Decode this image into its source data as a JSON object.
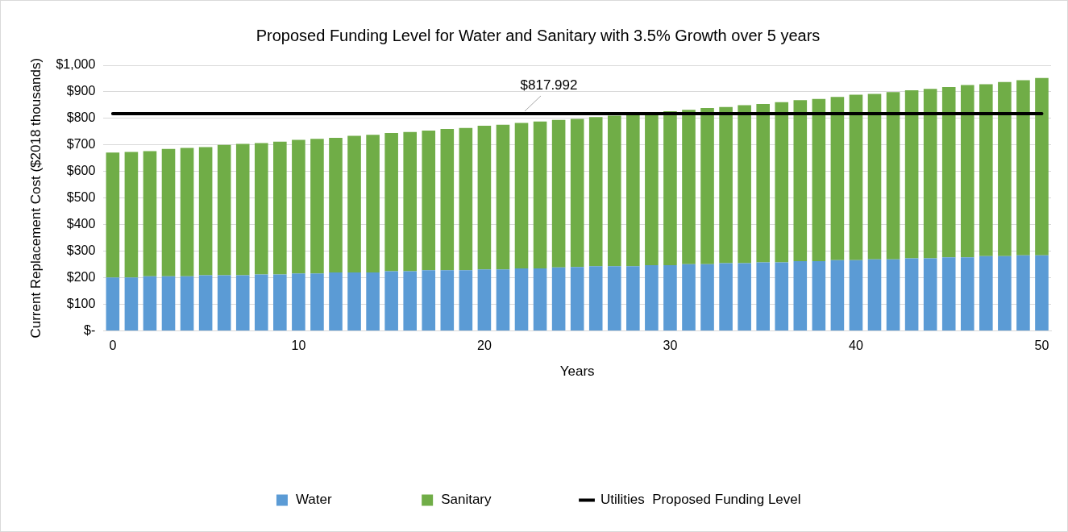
{
  "chart_data": {
    "type": "bar",
    "title": "Proposed Funding Level for Water and Sanitary with 3.5% Growth over 5 years",
    "xlabel": "Years",
    "ylabel": "Current Replacement Cost ($2018 thousands)",
    "categories": [
      "0",
      null,
      null,
      null,
      null,
      null,
      null,
      null,
      null,
      null,
      "10",
      null,
      null,
      null,
      null,
      null,
      null,
      null,
      null,
      null,
      "20",
      null,
      null,
      null,
      null,
      null,
      null,
      null,
      null,
      null,
      "30",
      null,
      null,
      null,
      null,
      null,
      null,
      null,
      null,
      null,
      "40",
      null,
      null,
      null,
      null,
      null,
      null,
      null,
      null,
      null,
      "50"
    ],
    "stacked": true,
    "series": [
      {
        "name": "Water",
        "color": "#5b9bd5",
        "values": [
          201,
          201,
          205,
          205,
          205,
          209,
          209,
          209,
          212,
          212,
          216,
          216,
          220,
          220,
          220,
          224,
          224,
          228,
          228,
          228,
          231,
          231,
          235,
          235,
          239,
          240,
          243,
          243,
          243,
          247,
          247,
          251,
          251,
          255,
          255,
          258,
          258,
          262,
          262,
          266,
          266,
          269,
          269,
          273,
          273,
          277,
          277,
          281,
          281,
          284,
          284
        ]
      },
      {
        "name": "Sanitary",
        "color": "#70ad47",
        "values": [
          470,
          473,
          472,
          480,
          484,
          483,
          491,
          495,
          495,
          500,
          503,
          507,
          507,
          514,
          518,
          521,
          525,
          526,
          532,
          536,
          541,
          545,
          548,
          553,
          555,
          558,
          562,
          567,
          571,
          571,
          580,
          581,
          588,
          588,
          595,
          596,
          603,
          607,
          611,
          615,
          623,
          623,
          630,
          633,
          638,
          641,
          649,
          648,
          656,
          660,
          668
        ]
      },
      {
        "name": "Utilities  Proposed Funding Level",
        "type": "line",
        "color": "#000000",
        "values": [
          817.992,
          817.992,
          817.992,
          817.992,
          817.992,
          817.992,
          817.992,
          817.992,
          817.992,
          817.992,
          817.992,
          817.992,
          817.992,
          817.992,
          817.992,
          817.992,
          817.992,
          817.992,
          817.992,
          817.992,
          817.992,
          817.992,
          817.992,
          817.992,
          817.992,
          817.992,
          817.992,
          817.992,
          817.992,
          817.992,
          817.992,
          817.992,
          817.992,
          817.992,
          817.992,
          817.992,
          817.992,
          817.992,
          817.992,
          817.992,
          817.992,
          817.992,
          817.992,
          817.992,
          817.992,
          817.992,
          817.992,
          817.992,
          817.992,
          817.992,
          817.992
        ],
        "value_labels": [
          null,
          null,
          null,
          null,
          null,
          null,
          null,
          null,
          null,
          null,
          null,
          null,
          null,
          null,
          null,
          null,
          null,
          null,
          null,
          null,
          null,
          null,
          "$817.992",
          null,
          null,
          null,
          null,
          null,
          null,
          null,
          null,
          null,
          null,
          null,
          null,
          null,
          null,
          null,
          null,
          null,
          null,
          null,
          null,
          null,
          null,
          null,
          null,
          null,
          null,
          null,
          null
        ]
      }
    ],
    "ylim": [
      0,
      1000
    ],
    "yticks": [
      {
        "value": 0,
        "label": "$-"
      },
      {
        "value": 100,
        "label": "$100"
      },
      {
        "value": 200,
        "label": "$200"
      },
      {
        "value": 300,
        "label": "$300"
      },
      {
        "value": 400,
        "label": "$400"
      },
      {
        "value": 500,
        "label": "$500"
      },
      {
        "value": 600,
        "label": "$600"
      },
      {
        "value": 700,
        "label": "$700"
      },
      {
        "value": 800,
        "label": "$800"
      },
      {
        "value": 900,
        "label": "$900"
      },
      {
        "value": 1000,
        "label": "$1,000"
      }
    ],
    "grid": "y",
    "legend": "bottom",
    "marker": "none"
  }
}
